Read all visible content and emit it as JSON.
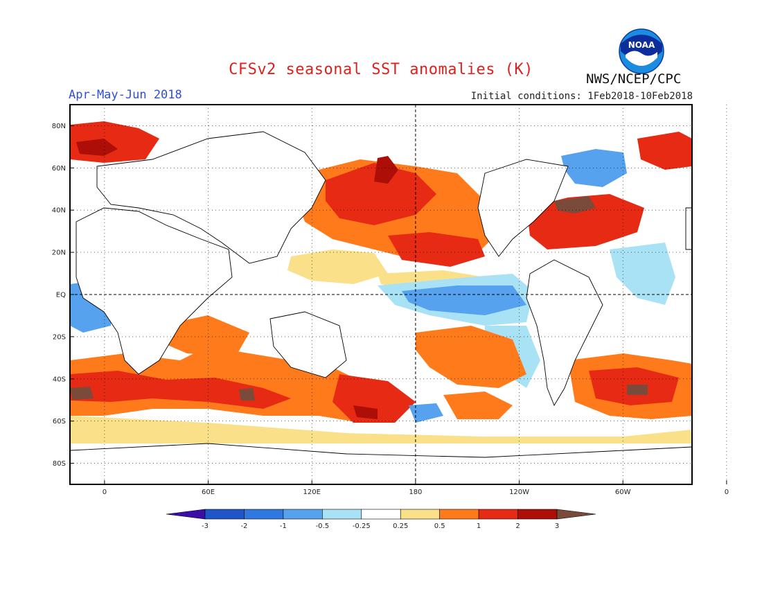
{
  "header": {
    "title": "CFSv2 seasonal SST anomalies (K)",
    "period": "Apr-May-Jun 2018",
    "initial_conditions": "Initial conditions: 1Feb2018-10Feb2018",
    "agency": "NWS/NCEP/CPC",
    "logo_text": "NOAA"
  },
  "map": {
    "lat_labels": [
      "80N",
      "60N",
      "40N",
      "20N",
      "EQ",
      "20S",
      "40S",
      "60S",
      "80S"
    ],
    "lon_labels": [
      "0",
      "60E",
      "120E",
      "180",
      "120W",
      "60W",
      "0"
    ]
  },
  "colorbar": {
    "labels": [
      "-3",
      "-2",
      "-1",
      "-0.5",
      "-0.25",
      "0.25",
      "0.5",
      "1",
      "2",
      "3"
    ],
    "colors": [
      "#3b0ea8",
      "#1e55c8",
      "#2f78e0",
      "#57a2ee",
      "#a9e2f5",
      "#ffffff",
      "#fbe08a",
      "#ff7a1a",
      "#e62a14",
      "#ad0e08",
      "#7a4a3a"
    ]
  }
}
